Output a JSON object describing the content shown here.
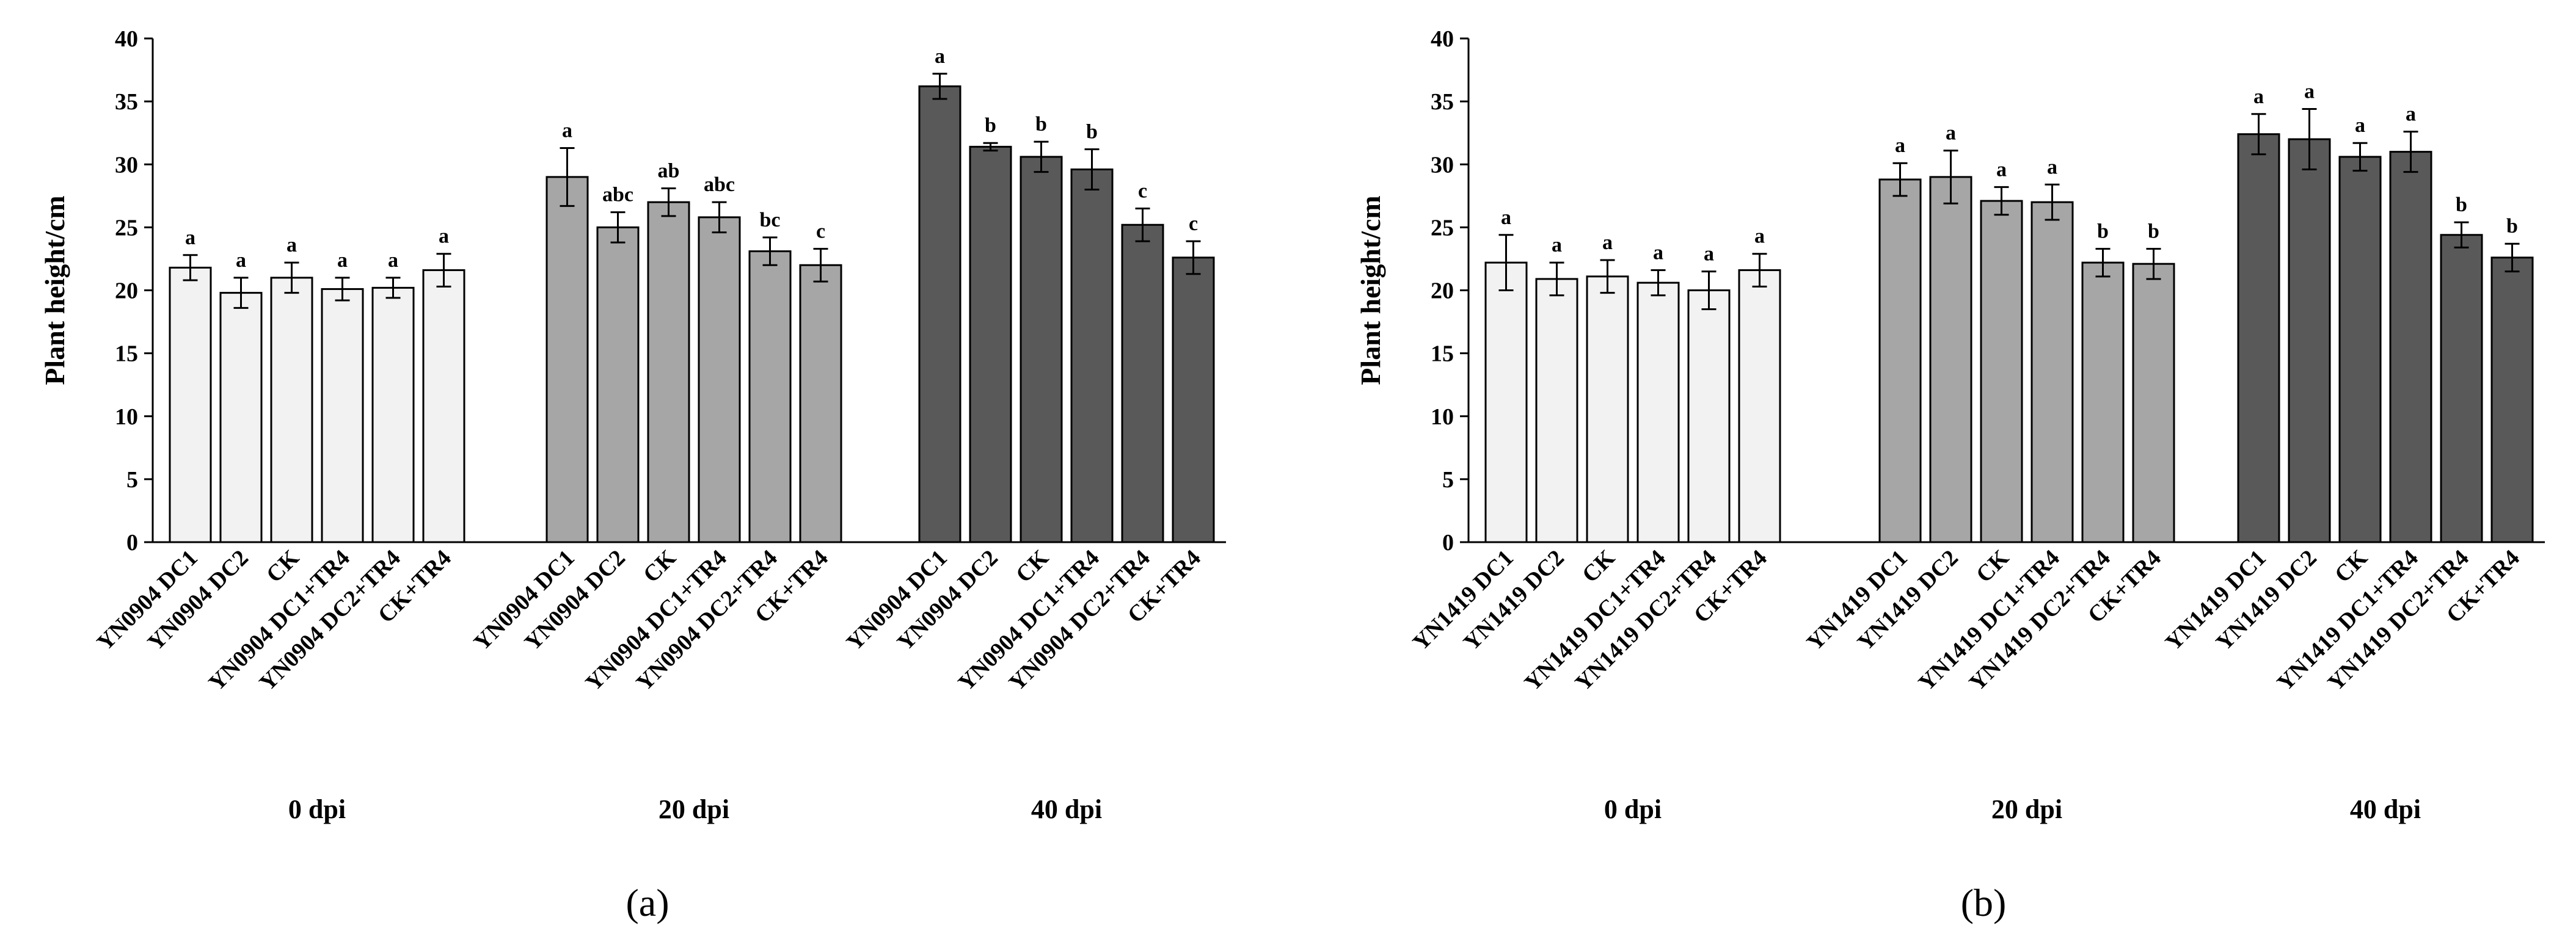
{
  "chart_data": [
    {
      "type": "bar",
      "panel_label": "(a)",
      "ylabel": "Plant height/cm",
      "xlabel": "",
      "ylim": [
        0,
        40
      ],
      "yticks": [
        "0",
        "5",
        "10",
        "15",
        "20",
        "25",
        "30",
        "35",
        "40"
      ],
      "grid": false,
      "groups": [
        {
          "name": "0 dpi",
          "color": "#f2f2f2",
          "categories": [
            "YN0904 DC1",
            "YN0904 DC2",
            "CK",
            "YN0904 DC1+TR4",
            "YN0904 DC2+TR4",
            "CK+TR4"
          ],
          "values": [
            21.8,
            19.8,
            21.0,
            20.1,
            20.2,
            21.6
          ],
          "errors": [
            1.0,
            1.2,
            1.2,
            0.9,
            0.8,
            1.3
          ],
          "letters": [
            "a",
            "a",
            "a",
            "a",
            "a",
            "a"
          ]
        },
        {
          "name": "20 dpi",
          "color": "#a6a6a6",
          "categories": [
            "YN0904 DC1",
            "YN0904 DC2",
            "CK",
            "YN0904 DC1+TR4",
            "YN0904 DC2+TR4",
            "CK+TR4"
          ],
          "values": [
            29.0,
            25.0,
            27.0,
            25.8,
            23.1,
            22.0
          ],
          "errors": [
            2.3,
            1.2,
            1.1,
            1.2,
            1.1,
            1.3
          ],
          "letters": [
            "a",
            "abc",
            "ab",
            "abc",
            "bc",
            "c"
          ]
        },
        {
          "name": "40 dpi",
          "color": "#595959",
          "categories": [
            "YN0904 DC1",
            "YN0904 DC2",
            "CK",
            "YN0904 DC1+TR4",
            "YN0904 DC2+TR4",
            "CK+TR4"
          ],
          "values": [
            36.2,
            31.4,
            30.6,
            29.6,
            25.2,
            22.6
          ],
          "errors": [
            1.0,
            0.3,
            1.2,
            1.6,
            1.3,
            1.3
          ],
          "letters": [
            "a",
            "b",
            "b",
            "b",
            "c",
            "c"
          ]
        }
      ]
    },
    {
      "type": "bar",
      "panel_label": "(b)",
      "ylabel": "Plant height/cm",
      "xlabel": "",
      "ylim": [
        0,
        40
      ],
      "yticks": [
        "0",
        "5",
        "10",
        "15",
        "20",
        "25",
        "30",
        "35",
        "40"
      ],
      "grid": false,
      "groups": [
        {
          "name": "0 dpi",
          "color": "#f2f2f2",
          "categories": [
            "YN1419 DC1",
            "YN1419 DC2",
            "CK",
            "YN1419 DC1+TR4",
            "YN1419 DC2+TR4",
            "CK+TR4"
          ],
          "values": [
            22.2,
            20.9,
            21.1,
            20.6,
            20.0,
            21.6
          ],
          "errors": [
            2.2,
            1.3,
            1.3,
            1.0,
            1.5,
            1.3
          ],
          "letters": [
            "a",
            "a",
            "a",
            "a",
            "a",
            "a"
          ]
        },
        {
          "name": "20 dpi",
          "color": "#a6a6a6",
          "categories": [
            "YN1419 DC1",
            "YN1419 DC2",
            "CK",
            "YN1419 DC1+TR4",
            "YN1419 DC2+TR4",
            "CK+TR4"
          ],
          "values": [
            28.8,
            29.0,
            27.1,
            27.0,
            22.2,
            22.1
          ],
          "errors": [
            1.3,
            2.1,
            1.1,
            1.4,
            1.1,
            1.2
          ],
          "letters": [
            "a",
            "a",
            "a",
            "a",
            "b",
            "b"
          ]
        },
        {
          "name": "40 dpi",
          "color": "#595959",
          "categories": [
            "YN1419 DC1",
            "YN1419 DC2",
            "CK",
            "YN1419 DC1+TR4",
            "YN1419 DC2+TR4",
            "CK+TR4"
          ],
          "values": [
            32.4,
            32.0,
            30.6,
            31.0,
            24.4,
            22.6
          ],
          "errors": [
            1.6,
            2.4,
            1.1,
            1.6,
            1.0,
            1.1
          ],
          "letters": [
            "a",
            "a",
            "a",
            "a",
            "b",
            "b"
          ]
        }
      ]
    }
  ]
}
